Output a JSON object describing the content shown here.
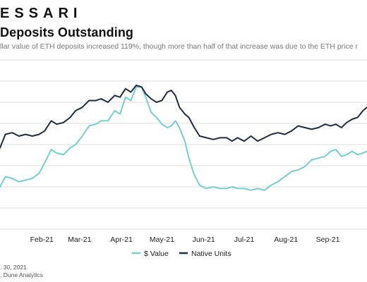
{
  "header": {
    "brand": "ESSARI",
    "title": "Deposits Outstanding",
    "subtitle": "llar value of ETH deposits increased 119%, though more than half of that increase was due to the ETH price r"
  },
  "footer": {
    "date_fragment": ". 30, 2021",
    "source_fragment": ", Dune Analytics"
  },
  "colors": {
    "dollar_value": "#74cdd7",
    "native_units": "#1e2d46",
    "grid": "#dcdcdc"
  },
  "chart_data": {
    "type": "line",
    "title": "",
    "xlabel": "",
    "ylabel": "",
    "grid": true,
    "legend_position": "bottom-center",
    "x_range": [
      "2021-01-01",
      "2021-09-30"
    ],
    "x_tick_labels": [
      {
        "date": "2021-02-01",
        "label": "Feb-21"
      },
      {
        "date": "2021-03-01",
        "label": "Mar-21"
      },
      {
        "date": "2021-04-01",
        "label": "Apr-21"
      },
      {
        "date": "2021-05-01",
        "label": "May-21"
      },
      {
        "date": "2021-06-01",
        "label": "Jun-21"
      },
      {
        "date": "2021-07-01",
        "label": "Jul-21"
      },
      {
        "date": "2021-08-01",
        "label": "Aug-21"
      },
      {
        "date": "2021-09-01",
        "label": "Sep-21"
      }
    ],
    "y_range": [
      0,
      100
    ],
    "y_gridlines": [
      0,
      12.5,
      25,
      37.5,
      50,
      62.5,
      75,
      87.5,
      100
    ],
    "series": [
      {
        "name": "$ Value",
        "color": "#74cdd7",
        "points": [
          [
            "2021-01-01",
            25
          ],
          [
            "2021-01-05",
            31
          ],
          [
            "2021-01-10",
            30
          ],
          [
            "2021-01-15",
            28
          ],
          [
            "2021-01-20",
            29
          ],
          [
            "2021-01-25",
            30
          ],
          [
            "2021-01-30",
            33
          ],
          [
            "2021-02-03",
            39
          ],
          [
            "2021-02-08",
            47
          ],
          [
            "2021-02-12",
            45
          ],
          [
            "2021-02-17",
            44
          ],
          [
            "2021-02-22",
            48
          ],
          [
            "2021-02-26",
            50
          ],
          [
            "2021-03-03",
            55
          ],
          [
            "2021-03-08",
            61
          ],
          [
            "2021-03-13",
            62
          ],
          [
            "2021-03-17",
            64
          ],
          [
            "2021-03-22",
            64
          ],
          [
            "2021-03-27",
            70
          ],
          [
            "2021-03-31",
            68
          ],
          [
            "2021-04-04",
            78
          ],
          [
            "2021-04-08",
            76
          ],
          [
            "2021-04-12",
            84
          ],
          [
            "2021-04-16",
            84
          ],
          [
            "2021-04-19",
            78
          ],
          [
            "2021-04-23",
            69
          ],
          [
            "2021-04-27",
            66
          ],
          [
            "2021-05-01",
            62
          ],
          [
            "2021-05-05",
            60
          ],
          [
            "2021-05-08",
            61
          ],
          [
            "2021-05-11",
            64
          ],
          [
            "2021-05-14",
            60
          ],
          [
            "2021-05-18",
            52
          ],
          [
            "2021-05-21",
            42
          ],
          [
            "2021-05-25",
            32
          ],
          [
            "2021-05-29",
            26
          ],
          [
            "2021-06-03",
            24
          ],
          [
            "2021-06-08",
            25
          ],
          [
            "2021-06-13",
            24
          ],
          [
            "2021-06-18",
            24
          ],
          [
            "2021-06-22",
            25
          ],
          [
            "2021-06-26",
            24
          ],
          [
            "2021-07-01",
            24
          ],
          [
            "2021-07-06",
            23
          ],
          [
            "2021-07-11",
            24
          ],
          [
            "2021-07-16",
            23
          ],
          [
            "2021-07-21",
            26
          ],
          [
            "2021-07-26",
            28
          ],
          [
            "2021-07-31",
            31
          ],
          [
            "2021-08-05",
            34
          ],
          [
            "2021-08-10",
            35
          ],
          [
            "2021-08-15",
            37
          ],
          [
            "2021-08-20",
            41
          ],
          [
            "2021-08-25",
            42
          ],
          [
            "2021-08-30",
            43
          ],
          [
            "2021-09-03",
            46
          ],
          [
            "2021-09-07",
            47
          ],
          [
            "2021-09-11",
            43
          ],
          [
            "2021-09-15",
            44
          ],
          [
            "2021-09-19",
            46
          ],
          [
            "2021-09-23",
            44
          ],
          [
            "2021-09-27",
            45
          ],
          [
            "2021-09-30",
            46
          ]
        ]
      },
      {
        "name": "Native Units",
        "color": "#1e2d46",
        "points": [
          [
            "2021-01-01",
            48
          ],
          [
            "2021-01-05",
            56
          ],
          [
            "2021-01-10",
            57
          ],
          [
            "2021-01-15",
            55
          ],
          [
            "2021-01-20",
            56
          ],
          [
            "2021-01-25",
            55
          ],
          [
            "2021-01-30",
            56
          ],
          [
            "2021-02-03",
            58
          ],
          [
            "2021-02-08",
            64
          ],
          [
            "2021-02-12",
            62
          ],
          [
            "2021-02-17",
            63
          ],
          [
            "2021-02-22",
            66
          ],
          [
            "2021-02-26",
            70
          ],
          [
            "2021-03-03",
            72
          ],
          [
            "2021-03-08",
            76
          ],
          [
            "2021-03-13",
            76
          ],
          [
            "2021-03-17",
            77
          ],
          [
            "2021-03-22",
            75
          ],
          [
            "2021-03-27",
            79
          ],
          [
            "2021-03-31",
            78
          ],
          [
            "2021-04-04",
            83
          ],
          [
            "2021-04-08",
            81
          ],
          [
            "2021-04-12",
            85
          ],
          [
            "2021-04-16",
            84
          ],
          [
            "2021-04-19",
            80
          ],
          [
            "2021-04-23",
            77
          ],
          [
            "2021-04-27",
            75
          ],
          [
            "2021-05-01",
            76
          ],
          [
            "2021-05-05",
            81
          ],
          [
            "2021-05-08",
            82
          ],
          [
            "2021-05-11",
            79
          ],
          [
            "2021-05-14",
            72
          ],
          [
            "2021-05-18",
            68
          ],
          [
            "2021-05-21",
            66
          ],
          [
            "2021-05-25",
            60
          ],
          [
            "2021-05-29",
            55
          ],
          [
            "2021-06-03",
            54
          ],
          [
            "2021-06-08",
            53
          ],
          [
            "2021-06-13",
            54
          ],
          [
            "2021-06-18",
            54
          ],
          [
            "2021-06-22",
            52
          ],
          [
            "2021-06-26",
            54
          ],
          [
            "2021-07-01",
            52
          ],
          [
            "2021-07-06",
            55
          ],
          [
            "2021-07-11",
            52
          ],
          [
            "2021-07-16",
            54
          ],
          [
            "2021-07-21",
            56
          ],
          [
            "2021-07-26",
            57
          ],
          [
            "2021-07-31",
            56
          ],
          [
            "2021-08-05",
            58
          ],
          [
            "2021-08-10",
            61
          ],
          [
            "2021-08-15",
            60
          ],
          [
            "2021-08-20",
            59
          ],
          [
            "2021-08-25",
            60
          ],
          [
            "2021-08-30",
            62
          ],
          [
            "2021-09-03",
            61
          ],
          [
            "2021-09-07",
            62
          ],
          [
            "2021-09-11",
            60
          ],
          [
            "2021-09-15",
            63
          ],
          [
            "2021-09-19",
            65
          ],
          [
            "2021-09-23",
            66
          ],
          [
            "2021-09-27",
            70
          ],
          [
            "2021-09-30",
            72
          ]
        ]
      }
    ]
  }
}
